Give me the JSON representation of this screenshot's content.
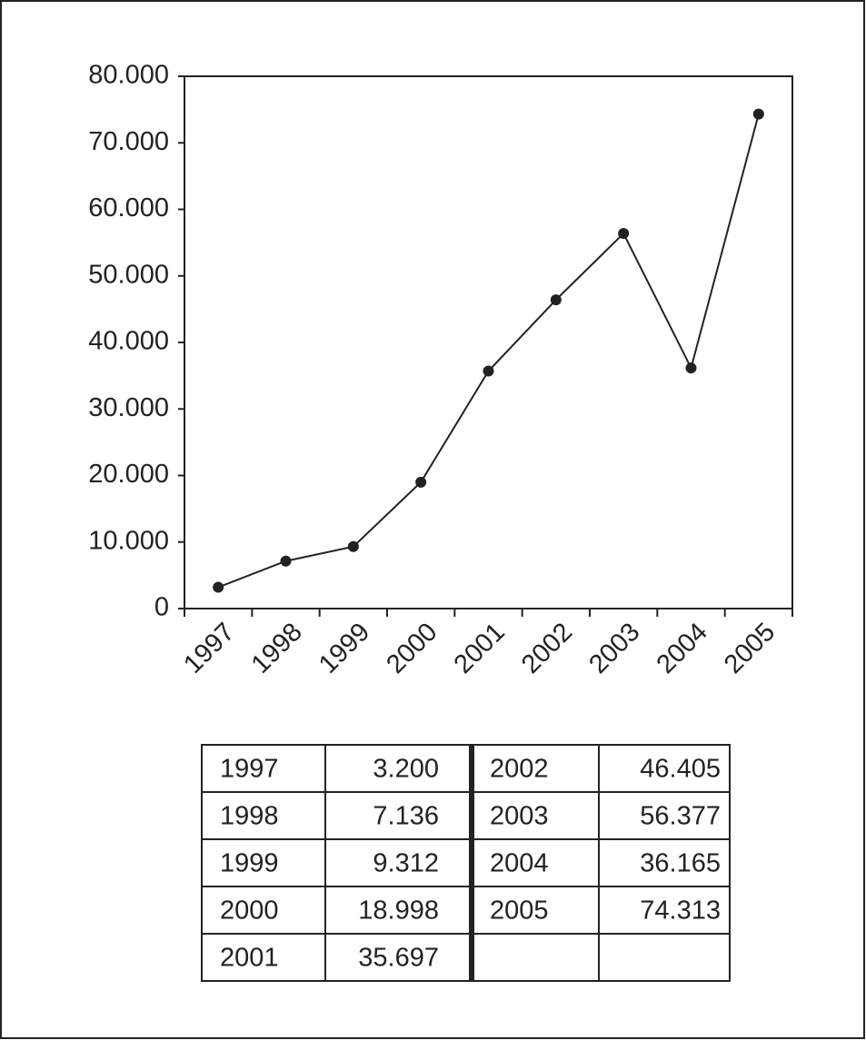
{
  "chart_data": {
    "type": "line",
    "categories": [
      "1997",
      "1998",
      "1999",
      "2000",
      "2001",
      "2002",
      "2003",
      "2004",
      "2005"
    ],
    "values": [
      3200,
      7136,
      9312,
      18998,
      35697,
      46405,
      56377,
      36165,
      74313
    ],
    "value_labels": [
      "3.200",
      "7.136",
      "9.312",
      "18.998",
      "35.697",
      "46.405",
      "56.377",
      "36.165",
      "74.313"
    ],
    "color": "#222222",
    "ylim": [
      0,
      80000
    ],
    "yticks": [
      0,
      {
        "value": 10000,
        "label": "10.000"
      },
      {
        "value": 20000,
        "label": "20.000"
      },
      {
        "value": 30000,
        "label": "30.000"
      },
      {
        "value": 40000,
        "label": "40.000"
      },
      {
        "value": 50000,
        "label": "50.000"
      },
      {
        "value": 60000,
        "label": "60.000"
      },
      {
        "value": 70000,
        "label": "70.000"
      },
      {
        "value": 80000,
        "label": "80.000"
      }
    ],
    "grid": false
  }
}
